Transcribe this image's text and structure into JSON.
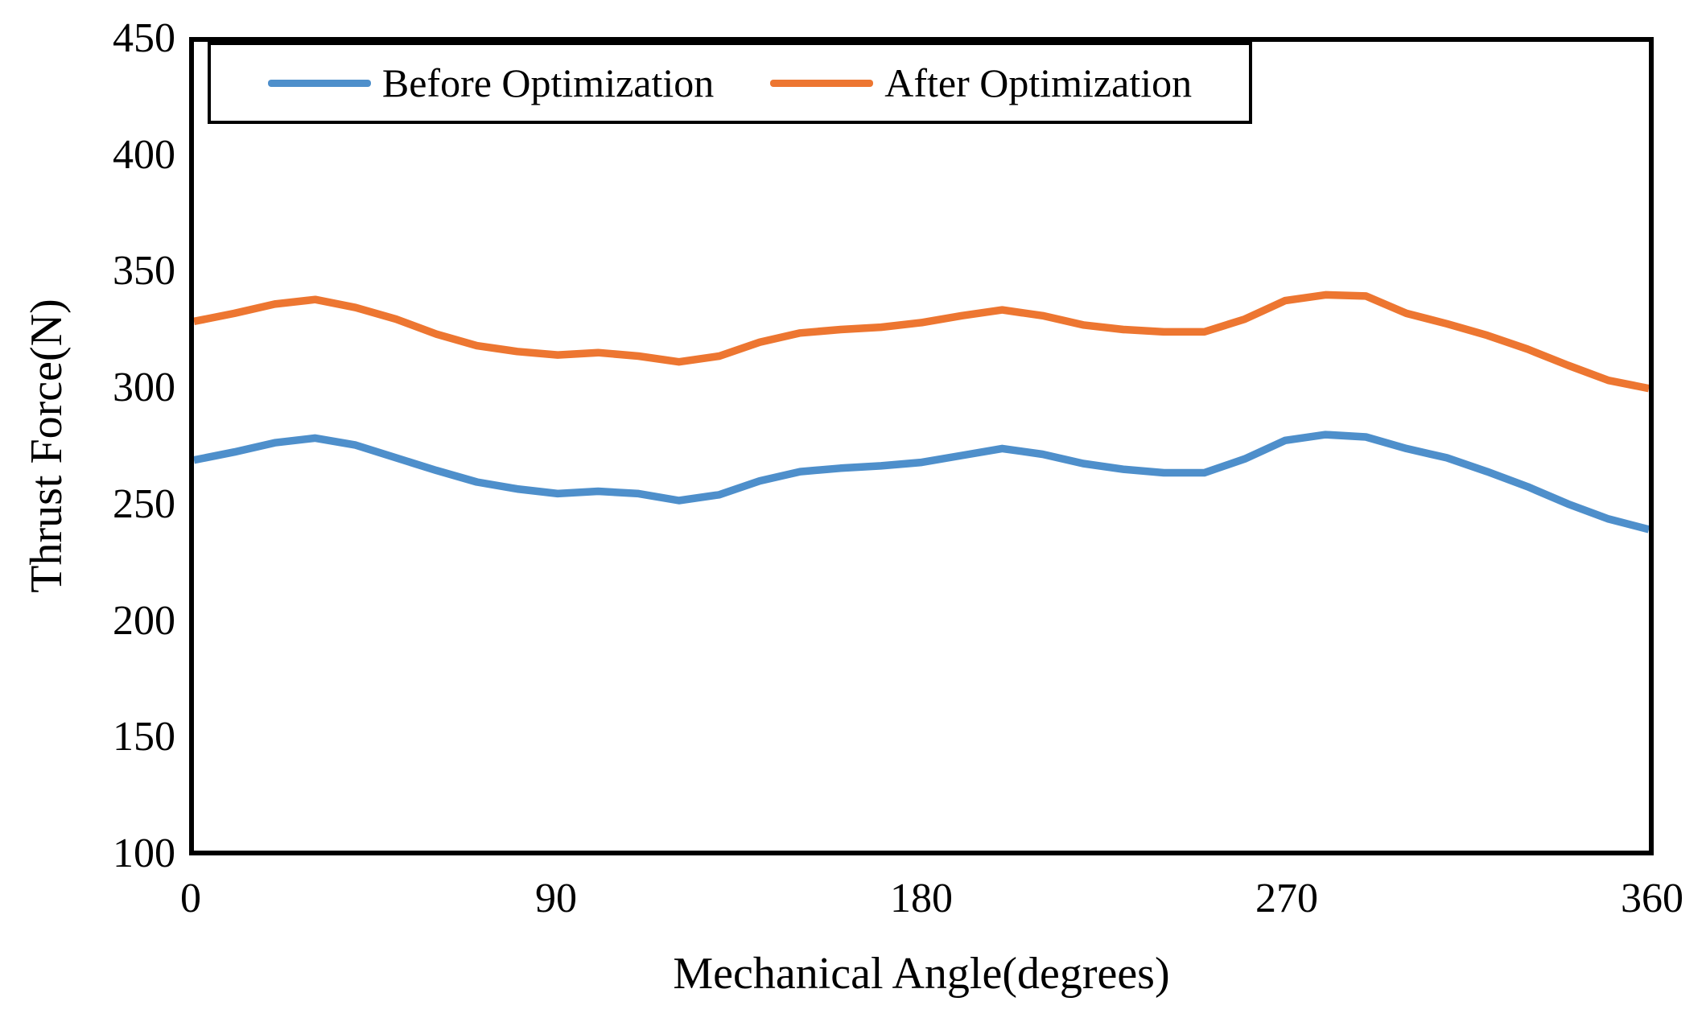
{
  "figure": {
    "background": "#ffffff"
  },
  "legend": {
    "items": [
      {
        "label": "Before Optimization",
        "color": "#4E8FCB"
      },
      {
        "label": "After Optimization",
        "color": "#ED7631"
      }
    ]
  },
  "chart_data": {
    "type": "line",
    "title": "",
    "xlabel": "Mechanical Angle(degrees)",
    "ylabel": "Thrust Force(N)",
    "xlim": [
      0,
      360
    ],
    "ylim": [
      100,
      450
    ],
    "x_ticks": [
      0,
      90,
      180,
      270,
      360
    ],
    "y_ticks": [
      100,
      150,
      200,
      250,
      300,
      350,
      400,
      450
    ],
    "grid": false,
    "legend_position": "top-inside",
    "x": [
      0,
      10,
      20,
      30,
      40,
      50,
      60,
      70,
      80,
      90,
      100,
      110,
      120,
      130,
      140,
      150,
      160,
      170,
      180,
      190,
      200,
      210,
      220,
      230,
      240,
      250,
      260,
      270,
      280,
      290,
      300,
      310,
      320,
      330,
      340,
      350,
      360
    ],
    "series": [
      {
        "name": "Before Optimization",
        "color": "#4E8FCB",
        "values": [
          269,
          272.5,
          276.5,
          278.5,
          275.5,
          270,
          264.5,
          259.5,
          256.5,
          254.5,
          255.5,
          254.5,
          251.5,
          254,
          260,
          264,
          265.5,
          266.5,
          268,
          271,
          274,
          271.5,
          267.5,
          265,
          263.5,
          263.5,
          269.5,
          277.5,
          280,
          279,
          274,
          270,
          264,
          257.5,
          250,
          243.5,
          239
        ]
      },
      {
        "name": "After Optimization",
        "color": "#ED7631",
        "values": [
          329,
          332.5,
          336.5,
          338.5,
          335,
          330,
          323.5,
          318.5,
          316,
          314.5,
          315.5,
          314,
          311.5,
          314,
          320,
          324,
          325.5,
          326.5,
          328.5,
          331.5,
          334,
          331.5,
          327.5,
          325.5,
          324.5,
          324.5,
          330,
          338,
          340.5,
          340,
          332.5,
          328,
          323,
          317,
          310,
          303.5,
          300
        ]
      }
    ]
  }
}
